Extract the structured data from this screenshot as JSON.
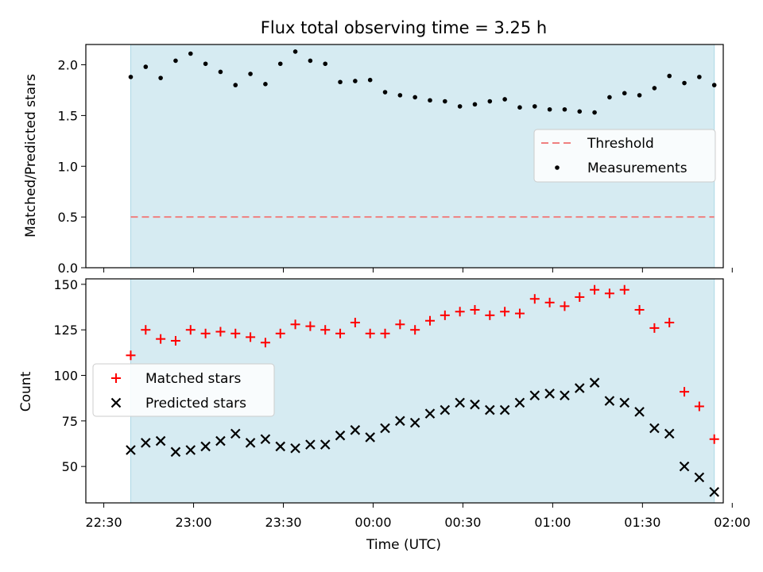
{
  "figure": {
    "title": "Flux total observing time = 3.25 h",
    "xlabel": "Time (UTC)",
    "x_ticks": [
      "22:30",
      "23:00",
      "23:30",
      "00:00",
      "00:30",
      "01:00",
      "01:30",
      "02:00"
    ]
  },
  "colors": {
    "shade": "#add8e6",
    "threshold": "#f08080",
    "measurement": "#000000",
    "matched": "#ff0000",
    "predicted": "#000000"
  },
  "chart_data": [
    {
      "type": "scatter",
      "panel": "top",
      "ylabel": "Matched/Predicted stars",
      "ylim": [
        0,
        2.2
      ],
      "yticks": [
        "0.0",
        "0.5",
        "1.0",
        "1.5",
        "2.0"
      ],
      "xlim_minutes_from_22_30": [
        -6,
        207
      ],
      "shaded_span_minutes": [
        9,
        204
      ],
      "threshold": {
        "value": 0.5,
        "x_range_minutes": [
          9,
          204
        ],
        "label": "Threshold"
      },
      "series": [
        {
          "name": "Measurements",
          "marker": "dot",
          "x_minutes": [
            9,
            14,
            19,
            24,
            29,
            34,
            39,
            44,
            49,
            54,
            59,
            64,
            69,
            74,
            79,
            84,
            89,
            94,
            99,
            104,
            109,
            114,
            119,
            124,
            129,
            134,
            139,
            144,
            149,
            154,
            159,
            164,
            169,
            174,
            179,
            184,
            189,
            194,
            199,
            204
          ],
          "values": [
            1.88,
            1.98,
            1.87,
            2.04,
            2.11,
            2.01,
            1.93,
            1.8,
            1.91,
            1.81,
            2.01,
            2.13,
            2.04,
            2.01,
            1.83,
            1.84,
            1.85,
            1.73,
            1.7,
            1.68,
            1.65,
            1.64,
            1.59,
            1.61,
            1.64,
            1.66,
            1.58,
            1.59,
            1.56,
            1.56,
            1.54,
            1.53,
            1.68,
            1.72,
            1.7,
            1.77,
            1.89,
            1.82,
            1.88,
            1.8
          ]
        }
      ],
      "legend": {
        "placement": "right",
        "entries": [
          "Threshold",
          "Measurements"
        ]
      }
    },
    {
      "type": "scatter",
      "panel": "bottom",
      "ylabel": "Count",
      "ylim": [
        30,
        153
      ],
      "yticks": [
        "50",
        "75",
        "100",
        "125",
        "150"
      ],
      "xlim_minutes_from_22_30": [
        -6,
        207
      ],
      "shaded_span_minutes": [
        9,
        204
      ],
      "series": [
        {
          "name": "Matched stars",
          "marker": "plus",
          "x_minutes": [
            9,
            14,
            19,
            24,
            29,
            34,
            39,
            44,
            49,
            54,
            59,
            64,
            69,
            74,
            79,
            84,
            89,
            94,
            99,
            104,
            109,
            114,
            119,
            124,
            129,
            134,
            139,
            144,
            149,
            154,
            159,
            164,
            169,
            174,
            179,
            184,
            189,
            194,
            199,
            204
          ],
          "values": [
            111,
            125,
            120,
            119,
            125,
            123,
            124,
            123,
            121,
            118,
            123,
            128,
            127,
            125,
            123,
            129,
            123,
            123,
            128,
            125,
            130,
            133,
            135,
            136,
            133,
            135,
            134,
            142,
            140,
            138,
            143,
            147,
            145,
            147,
            136,
            126,
            129,
            91,
            83,
            65
          ]
        },
        {
          "name": "Predicted stars",
          "marker": "x",
          "x_minutes": [
            9,
            14,
            19,
            24,
            29,
            34,
            39,
            44,
            49,
            54,
            59,
            64,
            69,
            74,
            79,
            84,
            89,
            94,
            99,
            104,
            109,
            114,
            119,
            124,
            129,
            134,
            139,
            144,
            149,
            154,
            159,
            164,
            169,
            174,
            179,
            184,
            189,
            194,
            199,
            204
          ],
          "values": [
            59,
            63,
            64,
            58,
            59,
            61,
            64,
            68,
            63,
            65,
            61,
            60,
            62,
            62,
            67,
            70,
            66,
            71,
            75,
            74,
            79,
            81,
            85,
            84,
            81,
            81,
            85,
            89,
            90,
            89,
            93,
            96,
            86,
            85,
            80,
            71,
            68,
            50,
            44,
            36
          ]
        }
      ],
      "legend": {
        "placement": "left",
        "entries": [
          "Matched stars",
          "Predicted stars"
        ]
      }
    }
  ]
}
